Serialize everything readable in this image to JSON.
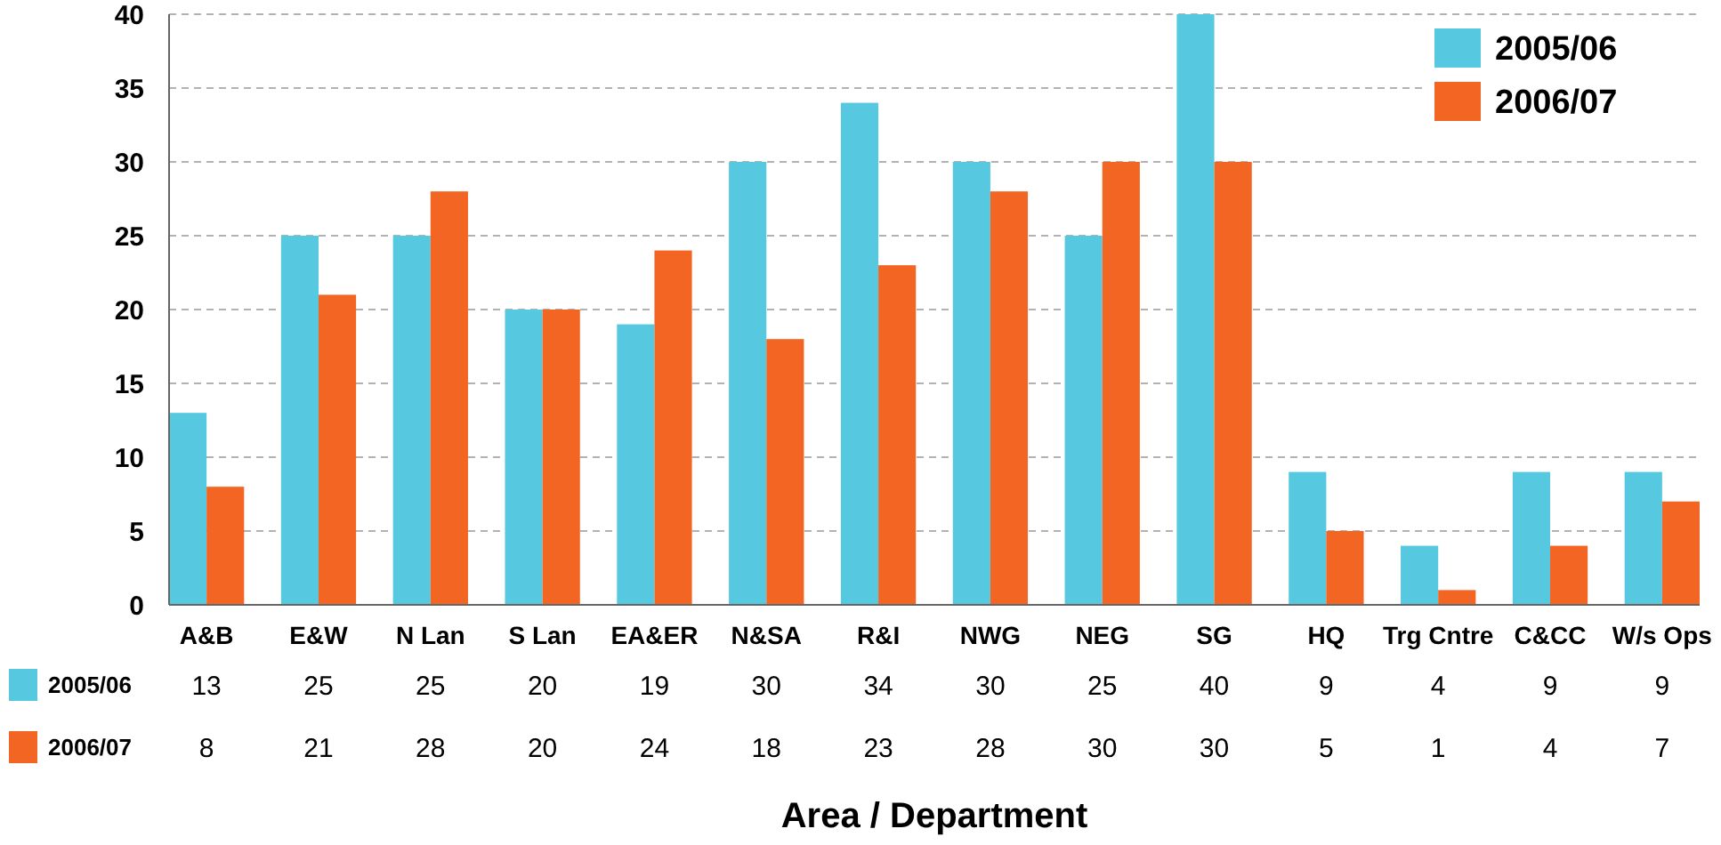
{
  "chart_data": {
    "type": "bar",
    "xlabel": "Area / Department",
    "categories": [
      "A&B",
      "E&W",
      "N Lan",
      "S Lan",
      "EA&ER",
      "N&SA",
      "R&I",
      "NWG",
      "NEG",
      "SG",
      "HQ",
      "Trg Cntre",
      "C&CC",
      "W/s Ops"
    ],
    "series": [
      {
        "name": "2005/06",
        "color": "#56c8e0",
        "values": [
          13,
          25,
          25,
          20,
          19,
          30,
          34,
          30,
          25,
          40,
          9,
          4,
          9,
          9
        ]
      },
      {
        "name": "2006/07",
        "color": "#f26522",
        "values": [
          8,
          21,
          28,
          20,
          24,
          18,
          23,
          28,
          30,
          30,
          5,
          1,
          4,
          7
        ]
      }
    ],
    "ylim": [
      0,
      40
    ],
    "yticks": [
      0,
      5,
      10,
      15,
      20,
      25,
      30,
      35,
      40
    ],
    "grid": "y",
    "legend": "top right",
    "data_labels": true
  }
}
